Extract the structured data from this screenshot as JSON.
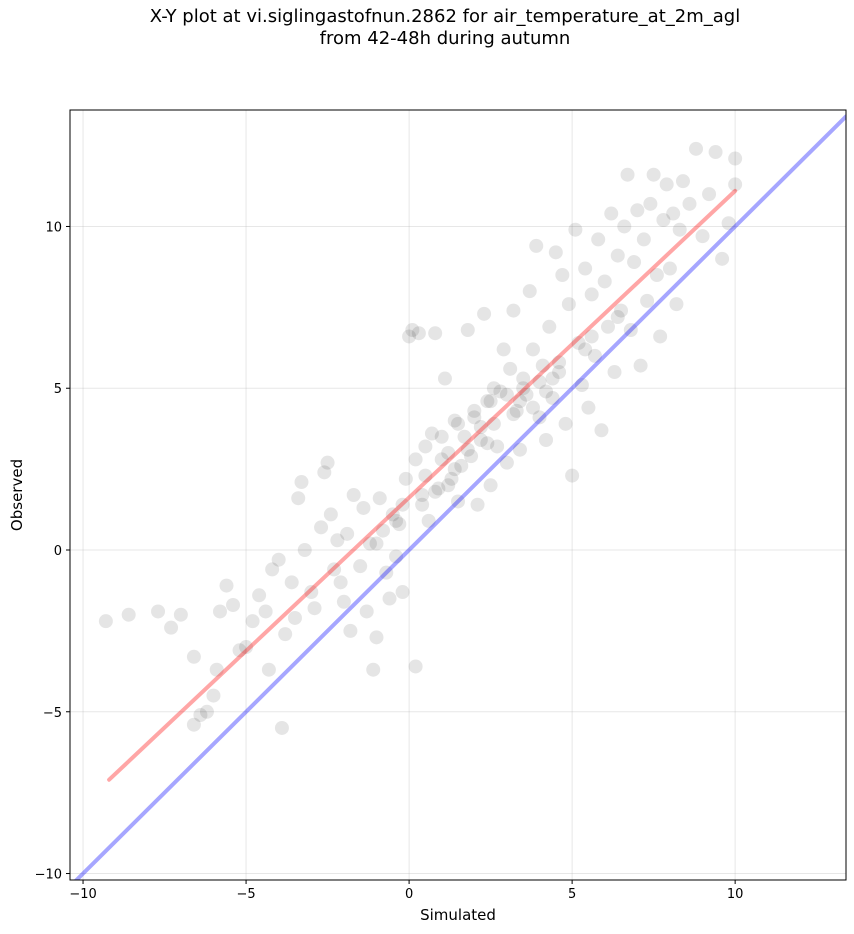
{
  "chart_data": {
    "type": "scatter",
    "title_line1": "X-Y plot at vi.siglingastofnun.2862 for air_temperature_at_2m_agl",
    "title_line2": "from 42-48h during autumn",
    "xlabel": "Simulated",
    "ylabel": "Observed",
    "xlim": [
      -10.4,
      13.4
    ],
    "ylim": [
      -10.2,
      13.6
    ],
    "xticks": [
      -10,
      -5,
      0,
      5,
      10
    ],
    "yticks": [
      -10,
      -5,
      0,
      5,
      10
    ],
    "xtick_labels": [
      "−10",
      "−5",
      "0",
      "5",
      "10"
    ],
    "ytick_labels": [
      "−10",
      "−5",
      "0",
      "5",
      "10"
    ],
    "grid": true,
    "marker_color": "#000000",
    "marker_alpha": 0.1,
    "identity_line": {
      "color": "#0000ff",
      "alpha": 0.35,
      "x": [
        -10.4,
        13.4
      ],
      "y": [
        -10.4,
        13.4
      ]
    },
    "fit_line": {
      "color": "#ff0000",
      "alpha": 0.35,
      "x": [
        -9.2,
        10.0
      ],
      "y": [
        -7.1,
        11.1
      ]
    },
    "series": [
      {
        "points": [
          [
            -9.3,
            -2.2
          ],
          [
            -8.6,
            -2.0
          ],
          [
            -7.7,
            -1.9
          ],
          [
            -7.3,
            -2.4
          ],
          [
            -7.0,
            -2.0
          ],
          [
            -6.6,
            -3.3
          ],
          [
            -6.6,
            -5.4
          ],
          [
            -6.4,
            -5.1
          ],
          [
            -6.2,
            -5.0
          ],
          [
            -6.0,
            -4.5
          ],
          [
            -5.9,
            -3.7
          ],
          [
            -5.8,
            -1.9
          ],
          [
            -5.6,
            -1.1
          ],
          [
            -5.4,
            -1.7
          ],
          [
            -5.2,
            -3.1
          ],
          [
            -5.0,
            -3.0
          ],
          [
            -4.8,
            -2.2
          ],
          [
            -4.6,
            -1.4
          ],
          [
            -4.4,
            -1.9
          ],
          [
            -4.3,
            -3.7
          ],
          [
            -4.2,
            -0.6
          ],
          [
            -4.0,
            -0.3
          ],
          [
            -3.9,
            -5.5
          ],
          [
            -3.8,
            -2.6
          ],
          [
            -3.6,
            -1.0
          ],
          [
            -3.5,
            -2.1
          ],
          [
            -3.4,
            1.6
          ],
          [
            -3.3,
            2.1
          ],
          [
            -3.2,
            0.0
          ],
          [
            -3.0,
            -1.3
          ],
          [
            -2.9,
            -1.8
          ],
          [
            -2.7,
            0.7
          ],
          [
            -2.6,
            2.4
          ],
          [
            -2.5,
            2.7
          ],
          [
            -2.4,
            1.1
          ],
          [
            -2.3,
            -0.6
          ],
          [
            -2.2,
            0.3
          ],
          [
            -2.1,
            -1.0
          ],
          [
            -2.0,
            -1.6
          ],
          [
            -1.9,
            0.5
          ],
          [
            -1.8,
            -2.5
          ],
          [
            -1.7,
            1.7
          ],
          [
            -1.5,
            -0.5
          ],
          [
            -1.4,
            1.3
          ],
          [
            -1.3,
            -1.9
          ],
          [
            -1.2,
            0.2
          ],
          [
            -1.1,
            -3.7
          ],
          [
            -1.0,
            -2.7
          ],
          [
            -0.9,
            1.6
          ],
          [
            -0.8,
            0.6
          ],
          [
            -0.7,
            -0.7
          ],
          [
            -0.6,
            -1.5
          ],
          [
            -0.5,
            1.1
          ],
          [
            -0.4,
            -0.2
          ],
          [
            -0.3,
            0.8
          ],
          [
            -0.2,
            -1.3
          ],
          [
            -0.1,
            2.2
          ],
          [
            0.0,
            6.6
          ],
          [
            0.1,
            6.8
          ],
          [
            0.2,
            -3.6
          ],
          [
            0.3,
            6.7
          ],
          [
            0.4,
            1.4
          ],
          [
            0.5,
            2.3
          ],
          [
            0.6,
            0.9
          ],
          [
            0.7,
            3.6
          ],
          [
            0.8,
            6.7
          ],
          [
            0.9,
            1.9
          ],
          [
            1.0,
            2.8
          ],
          [
            1.1,
            5.3
          ],
          [
            1.2,
            3.0
          ],
          [
            1.3,
            2.2
          ],
          [
            1.4,
            4.0
          ],
          [
            1.5,
            1.5
          ],
          [
            1.6,
            2.6
          ],
          [
            1.7,
            3.5
          ],
          [
            1.8,
            6.8
          ],
          [
            1.9,
            2.9
          ],
          [
            2.0,
            4.1
          ],
          [
            2.1,
            1.4
          ],
          [
            2.2,
            3.8
          ],
          [
            2.3,
            7.3
          ],
          [
            2.4,
            4.6
          ],
          [
            2.5,
            2.0
          ],
          [
            2.6,
            5.0
          ],
          [
            2.7,
            3.2
          ],
          [
            2.8,
            4.9
          ],
          [
            2.9,
            6.2
          ],
          [
            3.0,
            2.7
          ],
          [
            3.1,
            5.6
          ],
          [
            3.2,
            7.4
          ],
          [
            3.3,
            4.3
          ],
          [
            3.4,
            3.1
          ],
          [
            3.5,
            5.3
          ],
          [
            3.6,
            4.8
          ],
          [
            3.7,
            8.0
          ],
          [
            3.8,
            6.2
          ],
          [
            3.9,
            9.4
          ],
          [
            4.0,
            4.1
          ],
          [
            4.1,
            5.7
          ],
          [
            4.2,
            3.4
          ],
          [
            4.3,
            6.9
          ],
          [
            4.4,
            4.7
          ],
          [
            4.5,
            9.2
          ],
          [
            4.6,
            5.8
          ],
          [
            4.7,
            8.5
          ],
          [
            4.8,
            3.9
          ],
          [
            4.9,
            7.6
          ],
          [
            5.0,
            2.3
          ],
          [
            5.1,
            9.9
          ],
          [
            5.2,
            6.4
          ],
          [
            5.3,
            5.1
          ],
          [
            5.4,
            8.7
          ],
          [
            5.5,
            4.4
          ],
          [
            5.6,
            7.9
          ],
          [
            5.7,
            6.0
          ],
          [
            5.8,
            9.6
          ],
          [
            5.9,
            3.7
          ],
          [
            6.0,
            8.3
          ],
          [
            6.1,
            6.9
          ],
          [
            6.2,
            10.4
          ],
          [
            6.3,
            5.5
          ],
          [
            6.4,
            9.1
          ],
          [
            6.5,
            7.4
          ],
          [
            6.6,
            10.0
          ],
          [
            6.7,
            11.6
          ],
          [
            6.8,
            6.8
          ],
          [
            6.9,
            8.9
          ],
          [
            7.0,
            10.5
          ],
          [
            7.1,
            5.7
          ],
          [
            7.2,
            9.6
          ],
          [
            7.3,
            7.7
          ],
          [
            7.4,
            10.7
          ],
          [
            7.5,
            11.6
          ],
          [
            7.6,
            8.5
          ],
          [
            7.7,
            6.6
          ],
          [
            7.8,
            10.2
          ],
          [
            7.9,
            11.3
          ],
          [
            8.0,
            8.7
          ],
          [
            8.1,
            10.4
          ],
          [
            8.2,
            7.6
          ],
          [
            8.3,
            9.9
          ],
          [
            8.4,
            11.4
          ],
          [
            8.6,
            10.7
          ],
          [
            8.8,
            12.4
          ],
          [
            9.0,
            9.7
          ],
          [
            9.2,
            11.0
          ],
          [
            9.4,
            12.3
          ],
          [
            9.6,
            9.0
          ],
          [
            9.8,
            10.1
          ],
          [
            10.0,
            12.1
          ],
          [
            10.0,
            11.3
          ],
          [
            0.2,
            2.8
          ],
          [
            0.5,
            3.2
          ],
          [
            1.0,
            3.5
          ],
          [
            1.5,
            3.9
          ],
          [
            2.0,
            4.3
          ],
          [
            2.5,
            4.6
          ],
          [
            3.0,
            4.8
          ],
          [
            3.5,
            5.0
          ],
          [
            4.0,
            5.2
          ],
          [
            1.2,
            2.0
          ],
          [
            1.8,
            3.1
          ],
          [
            2.6,
            3.9
          ],
          [
            3.4,
            4.6
          ],
          [
            4.2,
            4.9
          ],
          [
            0.8,
            1.8
          ],
          [
            2.2,
            3.4
          ],
          [
            3.8,
            4.4
          ],
          [
            4.6,
            5.5
          ],
          [
            5.4,
            6.2
          ],
          [
            -0.4,
            0.9
          ],
          [
            0.4,
            1.7
          ],
          [
            1.4,
            2.5
          ],
          [
            2.4,
            3.3
          ],
          [
            3.2,
            4.2
          ],
          [
            4.4,
            5.3
          ],
          [
            5.6,
            6.6
          ],
          [
            6.4,
            7.2
          ],
          [
            -1.0,
            0.2
          ],
          [
            -0.2,
            1.4
          ]
        ]
      }
    ]
  }
}
